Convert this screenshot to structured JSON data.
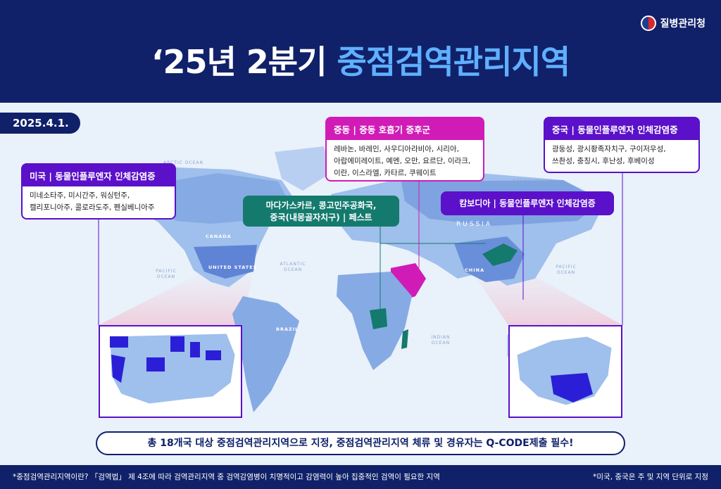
{
  "header": {
    "agency": "질병관리청",
    "title_prefix": "‘25년 2분기",
    "title_highlight": "중점검역관리지역"
  },
  "date": "2025.4.1.",
  "regions": {
    "us": {
      "head": "미국 | 동물인플루엔자 인체감염증",
      "lines": [
        "미네소타주, 미시간주, 워싱턴주,",
        "캘리포니아주, 콜로라도주, 펜실베니아주"
      ]
    },
    "middle_east": {
      "head": "중동 | 중동 호흡기 증후군",
      "lines": [
        "레바논, 바레인, 사우디아라비아, 시리아,",
        "아랍에미레이트, 예멘, 오만, 요르단, 이라크,",
        "이란, 이스라엘, 카타르, 쿠웨이트"
      ]
    },
    "china": {
      "head": "중국 | 동물인플루엔자 인체감염증",
      "lines": [
        "광둥성, 광시좡족자치구, 구이저우성,",
        "쓰촨성, 충칭시, 후난성, 후베이성"
      ]
    },
    "africa": {
      "line1": "마다가스카르, 콩고민주공화국,",
      "line2": "중국(내몽골자치구) | 페스트"
    },
    "cambodia": {
      "head": "캄보디아 | 동물인플루엔자 인체감염증"
    }
  },
  "map_labels": {
    "arctic_w": "ARCTIC OCEAN",
    "arctic_e": "ARCTIC OCEAN",
    "pacific_w": "PACIFIC OCEAN",
    "pacific_e": "PACIFIC OCEAN",
    "atlantic": "ATLANTIC OCEAN",
    "indian": "INDIAN OCEAN",
    "russia": "RUSSIA",
    "canada": "CANADA",
    "usa": "UNITED STATES",
    "china": "CHINA",
    "brazil": "BRAZIL"
  },
  "banner": "총 18개국 대상 중점검역관리지역으로 지정, 중점검역관리지역 체류 및 경유자는 Q-CODE제출 필수!",
  "footer": {
    "left": "*중점검역관리지역이란? 「검역법」 제 4조에 따라 검역관리지역 중 검역감염병이 치명적이고 감염력이 높아 집중적인 검역이 필요한 지역",
    "right": "*미국, 중국은 주 및 지역 단위로 지정"
  },
  "colors": {
    "navy": "#102169",
    "purple": "#5b10c9",
    "magenta": "#d11bb7",
    "teal": "#137a6d",
    "highlight": "#5fb0ff"
  }
}
